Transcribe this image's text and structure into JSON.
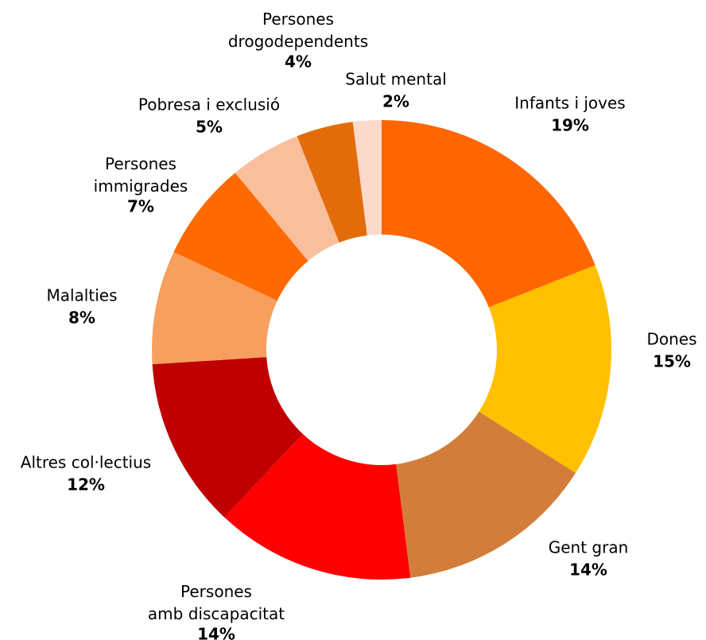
{
  "chart_data": {
    "type": "donut",
    "categories": [
      "Infants i joves",
      "Dones",
      "Gent gran",
      "Persones amb discapacitat",
      "Altres col·lectius",
      "Malalties",
      "Persones immigrades",
      "Pobresa i exclusió",
      "Persones drogodependents",
      "Salut mental"
    ],
    "values": [
      19,
      15,
      14,
      14,
      12,
      8,
      7,
      5,
      4,
      2
    ],
    "value_labels": [
      "19%",
      "15%",
      "14%",
      "14%",
      "12%",
      "8%",
      "7%",
      "5%",
      "4%",
      "2%"
    ],
    "colors": [
      "#FF6600",
      "#FFC000",
      "#D27E3A",
      "#FF0000",
      "#C00000",
      "#F79F5F",
      "#FF6A00",
      "#F9BF9C",
      "#E36C0A",
      "#FBDACC"
    ]
  }
}
